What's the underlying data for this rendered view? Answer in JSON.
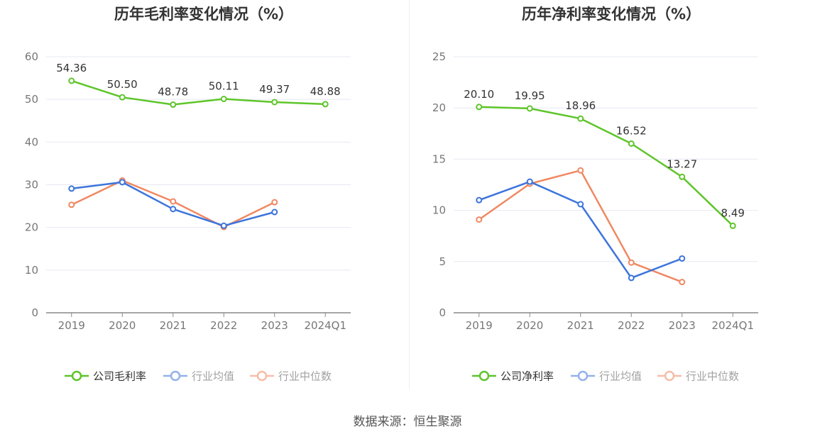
{
  "chart_data": [
    {
      "type": "line",
      "title": "历年毛利率变化情况（%）",
      "categories": [
        "2019",
        "2020",
        "2021",
        "2022",
        "2023",
        "2024Q1"
      ],
      "ylim": [
        0,
        60
      ],
      "yticks": [
        0,
        10,
        20,
        30,
        40,
        50,
        60
      ],
      "grid": true,
      "legend_position": "bottom",
      "series": [
        {
          "name": "公司毛利率",
          "color": "#5ec52a",
          "values": [
            54.36,
            50.5,
            48.78,
            50.11,
            49.37,
            48.88
          ],
          "labels": [
            "54.36",
            "50.50",
            "48.78",
            "50.11",
            "49.37",
            "48.88"
          ]
        },
        {
          "name": "行业均值",
          "color": "#3c74dc",
          "values": [
            29.1,
            30.6,
            24.3,
            20.4,
            23.6,
            null
          ]
        },
        {
          "name": "行业中位数",
          "color": "#f08862",
          "values": [
            25.3,
            31.0,
            26.1,
            20.1,
            25.9,
            null
          ]
        }
      ]
    },
    {
      "type": "line",
      "title": "历年净利率变化情况（%）",
      "categories": [
        "2019",
        "2020",
        "2021",
        "2022",
        "2023",
        "2024Q1"
      ],
      "ylim": [
        0,
        25
      ],
      "yticks": [
        0,
        5,
        10,
        15,
        20,
        25
      ],
      "grid": true,
      "legend_position": "bottom",
      "series": [
        {
          "name": "公司净利率",
          "color": "#5ec52a",
          "values": [
            20.1,
            19.95,
            18.96,
            16.52,
            13.27,
            8.49
          ],
          "labels": [
            "20.10",
            "19.95",
            "18.96",
            "16.52",
            "13.27",
            "8.49"
          ]
        },
        {
          "name": "行业均值",
          "color": "#3c74dc",
          "values": [
            11.0,
            12.8,
            10.6,
            3.4,
            5.3,
            null
          ]
        },
        {
          "name": "行业中位数",
          "color": "#f08862",
          "values": [
            9.1,
            12.6,
            13.9,
            4.9,
            3.0,
            null
          ]
        }
      ]
    }
  ],
  "footer": {
    "source": "数据来源：恒生聚源"
  }
}
